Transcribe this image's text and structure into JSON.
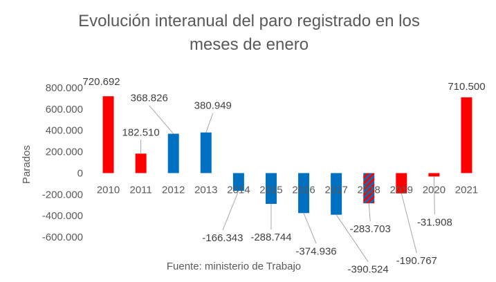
{
  "chart_data": {
    "type": "bar",
    "title_line1": "Evolución interanual del paro registrado en los",
    "title_line2": "meses de enero",
    "ylabel": "Parados",
    "xlabel": "",
    "source": "Fuente: ministerio de Trabajo",
    "ylim": [
      -600000,
      800000
    ],
    "yticks": [
      800000,
      600000,
      400000,
      200000,
      0,
      -200000,
      -400000,
      -600000
    ],
    "ytick_labels": [
      "800.000",
      "600.000",
      "400.000",
      "200.000",
      "0",
      "-200.000",
      "-400.000",
      "-600.000"
    ],
    "categories": [
      "2010",
      "2011",
      "2012",
      "2013",
      "2014",
      "2015",
      "2016",
      "2017",
      "2018",
      "2019",
      "2020",
      "2021"
    ],
    "values": [
      720692,
      182510,
      368826,
      380949,
      -166343,
      -288744,
      -374936,
      -390524,
      -283703,
      -190767,
      -31908,
      710500
    ],
    "value_labels": [
      "720.692",
      "182.510",
      "368.826",
      "380.949",
      "-166.343",
      "-288.744",
      "-374.936",
      "-390.524",
      "-283.703",
      "-190.767",
      "-31.908",
      "710.500"
    ],
    "bar_styles": [
      "red",
      "red",
      "blue",
      "blue",
      "blue",
      "blue",
      "blue",
      "blue",
      "hatched",
      "red",
      "red",
      "red"
    ],
    "colors": {
      "red": "#ff0000",
      "blue": "#0070c0",
      "grid": "#d9d9d9",
      "leader": "#a6a6a6"
    },
    "grid": false,
    "legend": "none"
  }
}
